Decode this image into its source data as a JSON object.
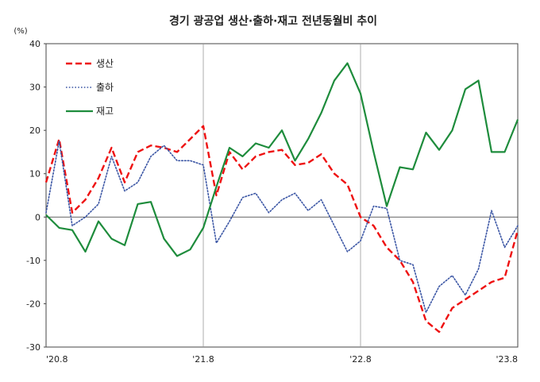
{
  "chart_data": {
    "type": "line",
    "title": "경기 광공업 생산·출하·재고 전년동월비 추이",
    "unit_label": "(%)",
    "ylim": [
      -30,
      40
    ],
    "yticks": [
      40,
      30,
      20,
      10,
      0,
      -10,
      -20,
      -30
    ],
    "x_tick_labels": [
      "'20.8",
      "'21.8",
      "'22.8",
      "'23.8"
    ],
    "x": [
      "'20.8",
      "'20.9",
      "'20.10",
      "'20.11",
      "'20.12",
      "'21.1",
      "'21.2",
      "'21.3",
      "'21.4",
      "'21.5",
      "'21.6",
      "'21.7",
      "'21.8",
      "'21.9",
      "'21.10",
      "'21.11",
      "'21.12",
      "'22.1",
      "'22.2",
      "'22.3",
      "'22.4",
      "'22.5",
      "'22.6",
      "'22.7",
      "'22.8",
      "'22.9",
      "'22.10",
      "'22.11",
      "'22.12",
      "'23.1",
      "'23.2",
      "'23.3",
      "'23.4",
      "'23.5",
      "'23.6",
      "'23.7",
      "'23.8"
    ],
    "grid": false,
    "legend_position": "top-left",
    "series": [
      {
        "name": "생산",
        "color": "#ee1111",
        "style": "dashed",
        "values": [
          8,
          18,
          1,
          4,
          9,
          16,
          8,
          15,
          16.5,
          16,
          15,
          18,
          21,
          5,
          15,
          11,
          14,
          15,
          15.5,
          12,
          12.5,
          14.5,
          10,
          7.5,
          0,
          -2,
          -7,
          -10,
          -15,
          -24,
          -26.5,
          -21,
          -19,
          -17,
          -15,
          -14,
          -3
        ]
      },
      {
        "name": "출하",
        "color": "#3a55a4",
        "style": "dotted",
        "values": [
          1,
          17.5,
          -2,
          0,
          3,
          14,
          6,
          8,
          14,
          16.5,
          13,
          13,
          12,
          -6,
          -1,
          4.5,
          5.5,
          1,
          4,
          5.5,
          1.5,
          4,
          -2,
          -8,
          -5.5,
          2.5,
          2,
          -10,
          -11,
          -22,
          -16,
          -13.5,
          -18,
          -12,
          1.5,
          -7,
          -2
        ]
      },
      {
        "name": "재고",
        "color": "#1e8c3c",
        "style": "solid",
        "values": [
          0.5,
          -2.5,
          -3,
          -8,
          -1,
          -5,
          -6.5,
          3,
          3.5,
          -5,
          -9,
          -7.5,
          -2.5,
          7,
          16,
          14,
          17,
          16,
          20,
          13,
          18,
          24,
          31.5,
          35.5,
          28.5,
          15,
          2.5,
          11.5,
          11,
          19.5,
          15.5,
          20,
          29.5,
          31.5,
          15,
          15,
          22.5
        ]
      }
    ]
  }
}
